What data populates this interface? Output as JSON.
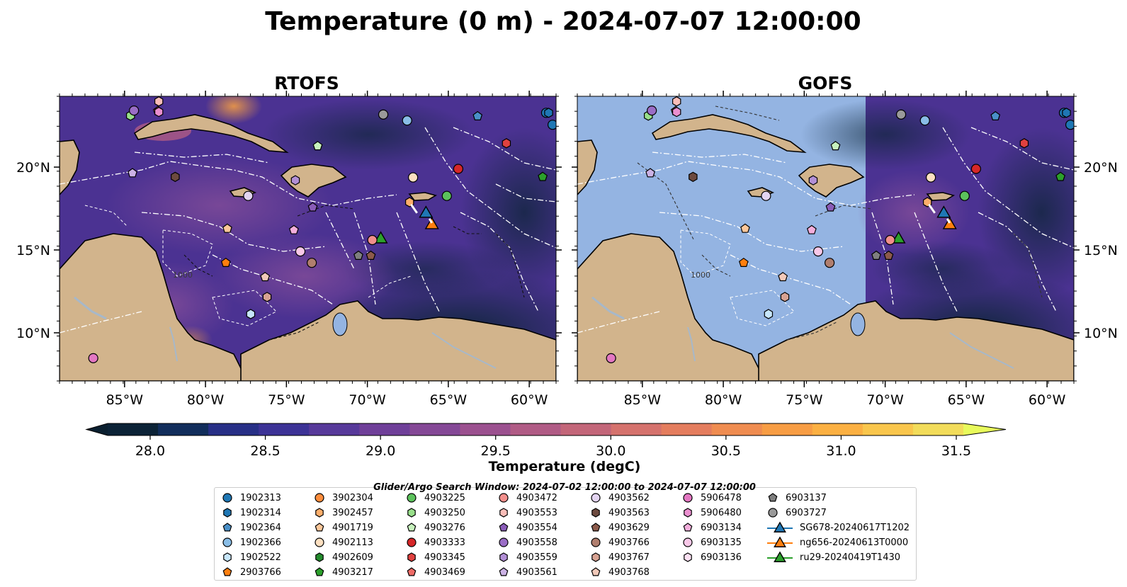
{
  "figure": {
    "title": "Temperature (0 m) - 2024-07-07 12:00:00",
    "panels": [
      {
        "title": "RTOFS"
      },
      {
        "title": "GOFS"
      }
    ],
    "lon_ticks": [
      "85°W",
      "80°W",
      "75°W",
      "70°W",
      "65°W",
      "60°W"
    ],
    "lat_ticks": [
      "20°N",
      "15°N",
      "10°N"
    ],
    "contour_label": "1000",
    "colorbar": {
      "label": "Temperature (degC)",
      "ticks": [
        "28.0",
        "28.5",
        "29.0",
        "29.5",
        "30.0",
        "30.5",
        "31.0",
        "31.5"
      ],
      "min": 28.0,
      "max": 31.5,
      "colors": [
        "#0b2236",
        "#112d5b",
        "#272f86",
        "#3c3296",
        "#57399a",
        "#6f3f99",
        "#844896",
        "#9b508f",
        "#b05b85",
        "#c36679",
        "#d5726d",
        "#e47d5e",
        "#ef8c50",
        "#f79d44",
        "#fbb042",
        "#f9c64c",
        "#f2dc5a"
      ],
      "under_color": "#0a1f2f",
      "over_color": "#e8fa5b"
    },
    "search_window": "Glider/Argo Search Window: 2024-07-02 12:00:00 to 2024-07-07 12:00:00",
    "map_colors": {
      "land": "#d2b48c",
      "rivers": "#a7b8c9",
      "gofs_mask": "#94b4e2",
      "ocean_rtofs": "#4e3494",
      "ocean_dark": "#0e2a3c"
    }
  },
  "legend": {
    "items": [
      {
        "label": "1902313",
        "marker": "circle",
        "color": "#1f77b4"
      },
      {
        "label": "1902314",
        "marker": "hexagon",
        "color": "#1f77b4"
      },
      {
        "label": "1902364",
        "marker": "pentagon",
        "color": "#4a90c8"
      },
      {
        "label": "1902366",
        "marker": "circle",
        "color": "#89bde6"
      },
      {
        "label": "1902522",
        "marker": "hexagon",
        "color": "#c7e6fb"
      },
      {
        "label": "2903766",
        "marker": "pentagon",
        "color": "#ff7f0e"
      },
      {
        "label": "3902304",
        "marker": "circle",
        "color": "#fd8d3c"
      },
      {
        "label": "3902457",
        "marker": "hexagon",
        "color": "#fdae6b"
      },
      {
        "label": "4901719",
        "marker": "pentagon",
        "color": "#fdc79a"
      },
      {
        "label": "4902113",
        "marker": "circle",
        "color": "#fde0c1"
      },
      {
        "label": "4902609",
        "marker": "hexagon",
        "color": "#238b2d"
      },
      {
        "label": "4903217",
        "marker": "pentagon",
        "color": "#2ca02c"
      },
      {
        "label": "4903225",
        "marker": "circle",
        "color": "#5cc25c"
      },
      {
        "label": "4903250",
        "marker": "hexagon",
        "color": "#98df8a"
      },
      {
        "label": "4903276",
        "marker": "pentagon",
        "color": "#c7f2bd"
      },
      {
        "label": "4903333",
        "marker": "circle",
        "color": "#d62728"
      },
      {
        "label": "4903345",
        "marker": "hexagon",
        "color": "#e0413f"
      },
      {
        "label": "4903469",
        "marker": "pentagon",
        "color": "#ef6c67"
      },
      {
        "label": "4903472",
        "marker": "circle",
        "color": "#f28f8c"
      },
      {
        "label": "4903553",
        "marker": "hexagon",
        "color": "#f9bdb8"
      },
      {
        "label": "4903554",
        "marker": "pentagon",
        "color": "#8a5cb8"
      },
      {
        "label": "4903558",
        "marker": "circle",
        "color": "#9a6dc6"
      },
      {
        "label": "4903559",
        "marker": "hexagon",
        "color": "#b28fd6"
      },
      {
        "label": "4903561",
        "marker": "pentagon",
        "color": "#cbb2e4"
      },
      {
        "label": "4903562",
        "marker": "circle",
        "color": "#e3d4f1"
      },
      {
        "label": "4903563",
        "marker": "hexagon",
        "color": "#6d4a3f"
      },
      {
        "label": "4903629",
        "marker": "pentagon",
        "color": "#8c5a4b"
      },
      {
        "label": "4903766",
        "marker": "circle",
        "color": "#b07e6e"
      },
      {
        "label": "4903767",
        "marker": "hexagon",
        "color": "#d7a292"
      },
      {
        "label": "4903768",
        "marker": "pentagon",
        "color": "#f2c9b9"
      },
      {
        "label": "5906478",
        "marker": "circle",
        "color": "#e377c2"
      },
      {
        "label": "5906480",
        "marker": "hexagon",
        "color": "#ea8fcf"
      },
      {
        "label": "6903134",
        "marker": "pentagon",
        "color": "#f3aedc"
      },
      {
        "label": "6903135",
        "marker": "circle",
        "color": "#f8c8e8"
      },
      {
        "label": "6903136",
        "marker": "hexagon",
        "color": "#fbe0f2"
      },
      {
        "label": "6903137",
        "marker": "pentagon",
        "color": "#7f7f7f"
      },
      {
        "label": "6903727",
        "marker": "circle",
        "color": "#9a9a9a"
      },
      {
        "label": "SG678-20240617T1202",
        "marker": "triangle-line",
        "color": "#1f77b4"
      },
      {
        "label": "ng656-20240613T0000",
        "marker": "triangle-line",
        "color": "#ff7f0e"
      },
      {
        "label": "ru29-20240419T1430",
        "marker": "triangle-line",
        "color": "#2ca02c"
      }
    ]
  }
}
